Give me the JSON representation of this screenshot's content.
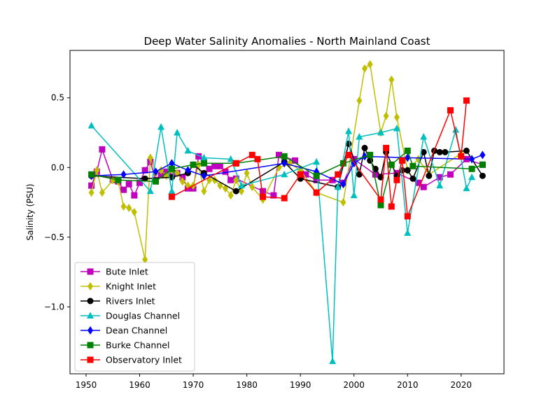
{
  "chart_data": {
    "type": "line",
    "title": "Deep Water Salinity Anomalies - North Mainland Coast",
    "xlabel": "",
    "ylabel": "Salinity (PSU)",
    "xlim": [
      1947,
      2028
    ],
    "ylim": [
      -1.48,
      0.84
    ],
    "xticks": [
      1950,
      1960,
      1970,
      1980,
      1990,
      2000,
      2010,
      2020
    ],
    "yticks": [
      -1.0,
      -0.5,
      0.0,
      0.5
    ],
    "ytick_labels": [
      "−1.0",
      "−0.5",
      "0.0",
      "0.5"
    ],
    "grid": false,
    "legend_position": "lower-left",
    "series": [
      {
        "name": "Bute Inlet",
        "color": "#bf00bf",
        "marker": "square",
        "x": [
          1951,
          1952,
          1953,
          1955,
          1956,
          1957,
          1958,
          1959,
          1960,
          1961,
          1962,
          1963,
          1964,
          1965,
          1966,
          1967,
          1968,
          1969,
          1970,
          1971,
          1972,
          1973,
          1974,
          1975,
          1976,
          1977,
          1978,
          1983,
          1985,
          1986,
          1989,
          1991,
          1993,
          1996,
          1998,
          2000,
          2004,
          2008,
          2012,
          2013,
          2016,
          2018,
          2021,
          2024
        ],
        "y": [
          -0.13,
          -0.03,
          0.13,
          -0.09,
          -0.1,
          -0.16,
          -0.12,
          -0.2,
          -0.11,
          -0.02,
          0.04,
          -0.09,
          -0.05,
          -0.03,
          -0.03,
          -0.04,
          -0.07,
          -0.15,
          -0.15,
          0.08,
          0.04,
          -0.01,
          0.01,
          0.01,
          -0.03,
          -0.09,
          -0.08,
          -0.17,
          -0.2,
          0.09,
          0.05,
          -0.05,
          -0.09,
          -0.09,
          -0.11,
          0.06,
          -0.05,
          -0.04,
          -0.11,
          -0.14,
          -0.07,
          -0.05,
          0.06,
          0.02
        ]
      },
      {
        "name": "Knight Inlet",
        "color": "#bfbf00",
        "marker": "diamond",
        "x": [
          1951,
          1952,
          1953,
          1955,
          1956,
          1957,
          1958,
          1959,
          1961,
          1962,
          1963,
          1964,
          1965,
          1966,
          1967,
          1968,
          1969,
          1970,
          1971,
          1972,
          1973,
          1974,
          1975,
          1976,
          1977,
          1978,
          1979,
          1980,
          1981,
          1983,
          1986,
          1988,
          1990,
          1993,
          1998,
          2001,
          2002,
          2003,
          2005,
          2006,
          2007,
          2008,
          2010,
          2012,
          2014,
          2020
        ],
        "y": [
          -0.18,
          -0.02,
          -0.18,
          -0.09,
          -0.1,
          -0.28,
          -0.29,
          -0.32,
          -0.66,
          0.07,
          -0.04,
          -0.02,
          -0.06,
          -0.02,
          -0.04,
          -0.1,
          -0.13,
          -0.13,
          0.02,
          -0.17,
          -0.09,
          -0.09,
          -0.13,
          -0.15,
          -0.2,
          -0.09,
          -0.17,
          -0.04,
          -0.14,
          -0.23,
          0.0,
          0.03,
          -0.02,
          -0.18,
          -0.25,
          0.48,
          0.71,
          0.74,
          0.25,
          0.37,
          0.63,
          0.36,
          -0.02,
          0.06,
          -0.05,
          0.1
        ]
      },
      {
        "name": "Rivers Inlet",
        "color": "#000000",
        "marker": "circle",
        "x": [
          1951,
          1961,
          1966,
          1969,
          1970,
          1972,
          1978,
          1987,
          1990,
          1997,
          1999,
          2001,
          2002,
          2003,
          2004,
          2005,
          2006,
          2008,
          2009,
          2010,
          2011,
          2013,
          2014,
          2015,
          2016,
          2017,
          2021,
          2024
        ],
        "y": [
          -0.06,
          -0.08,
          -0.07,
          -0.04,
          0.02,
          -0.04,
          -0.17,
          0.04,
          -0.08,
          -0.14,
          0.17,
          -0.05,
          0.14,
          0.05,
          -0.01,
          -0.07,
          0.11,
          -0.06,
          -0.02,
          -0.02,
          -0.08,
          0.11,
          -0.06,
          0.12,
          0.11,
          0.11,
          0.12,
          -0.06
        ]
      },
      {
        "name": "Douglas Channel",
        "color": "#00bfbf",
        "marker": "triangle",
        "x": [
          1951,
          1962,
          1964,
          1966,
          1967,
          1969,
          1972,
          1977,
          1979,
          1987,
          1993,
          1996,
          1997,
          1999,
          2000,
          2001,
          2005,
          2008,
          2010,
          2013,
          2016,
          2019,
          2021,
          2022
        ],
        "y": [
          0.3,
          -0.17,
          0.29,
          -0.17,
          0.25,
          0.12,
          0.07,
          0.06,
          -0.13,
          -0.05,
          0.04,
          -1.39,
          -0.14,
          0.26,
          -0.2,
          0.22,
          0.25,
          0.28,
          -0.47,
          0.22,
          -0.13,
          0.27,
          -0.15,
          -0.07
        ]
      },
      {
        "name": "Dean Channel",
        "color": "#0000ff",
        "marker": "diamond",
        "x": [
          1951,
          1957,
          1963,
          1966,
          1969,
          1972,
          1987,
          1993,
          1998,
          2000,
          2002,
          2010,
          2022,
          2024
        ],
        "y": [
          -0.06,
          -0.05,
          -0.03,
          0.03,
          -0.02,
          -0.06,
          0.03,
          -0.03,
          -0.12,
          0.03,
          0.08,
          0.07,
          0.06,
          0.09
        ]
      },
      {
        "name": "Burke Channel",
        "color": "#008000",
        "marker": "square",
        "x": [
          1951,
          1956,
          1963,
          1966,
          1970,
          1972,
          1978,
          1987,
          1993,
          1998,
          2003,
          2005,
          2007,
          2010,
          2011,
          2022,
          2024
        ],
        "y": [
          -0.05,
          -0.09,
          -0.1,
          -0.01,
          0.02,
          0.03,
          0.03,
          0.08,
          -0.06,
          0.03,
          0.09,
          -0.27,
          0.02,
          0.12,
          0.01,
          -0.01,
          0.02
        ]
      },
      {
        "name": "Observatory Inlet",
        "color": "#ff0000",
        "marker": "square",
        "x": [
          1966,
          1978,
          1981,
          1982,
          1983,
          1987,
          1990,
          1993,
          1997,
          1999,
          2005,
          2006,
          2007,
          2008,
          2009,
          2010,
          2018,
          2020,
          2021
        ],
        "y": [
          -0.21,
          0.03,
          0.09,
          0.06,
          -0.21,
          -0.22,
          -0.05,
          -0.18,
          -0.05,
          0.09,
          -0.23,
          0.14,
          -0.28,
          -0.09,
          0.05,
          -0.35,
          0.41,
          0.08,
          0.48
        ]
      }
    ]
  }
}
